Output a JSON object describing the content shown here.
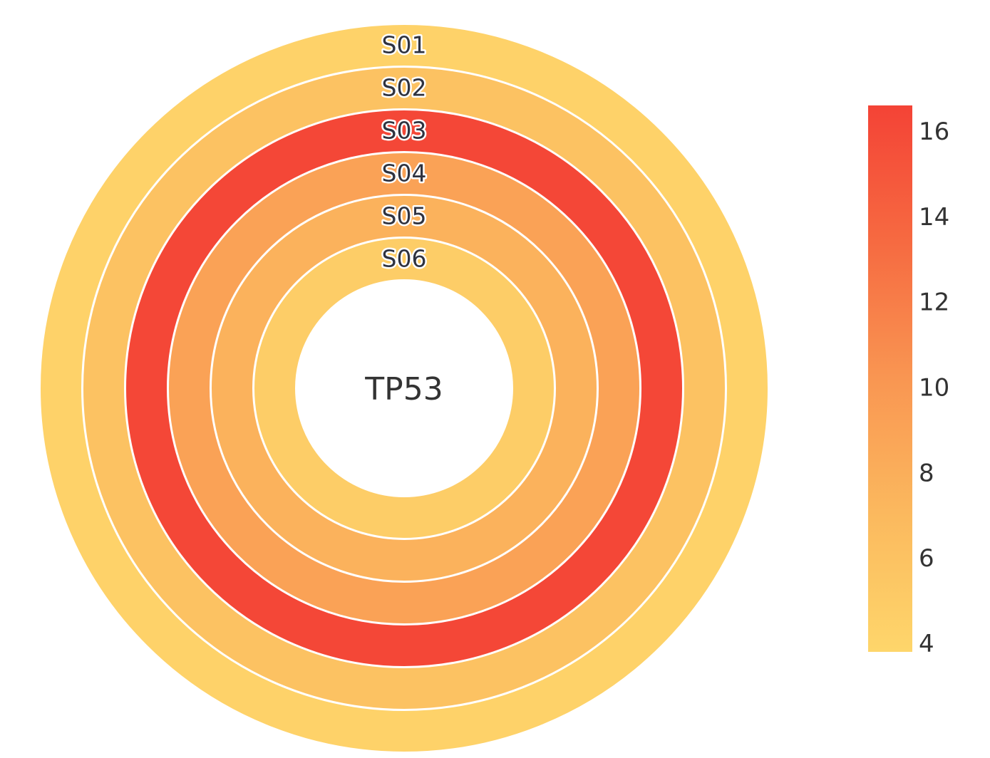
{
  "chart_data": {
    "type": "heatmap",
    "layout": "concentric-rings",
    "center_label": "TP53",
    "rings": [
      {
        "label": "S01",
        "value": 4.2
      },
      {
        "label": "S02",
        "value": 6.0
      },
      {
        "label": "S03",
        "value": 16.3
      },
      {
        "label": "S04",
        "value": 9.1
      },
      {
        "label": "S05",
        "value": 7.6
      },
      {
        "label": "S06",
        "value": 4.8
      }
    ],
    "colorbar": {
      "range": [
        3.8,
        16.6
      ],
      "ticks": [
        "4",
        "6",
        "8",
        "10",
        "12",
        "14",
        "16"
      ],
      "colors": [
        "#fed66b",
        "#fbb95e",
        "#f99652",
        "#f66a41",
        "#f44336"
      ]
    },
    "ring_separator_color": "#ffffff"
  }
}
